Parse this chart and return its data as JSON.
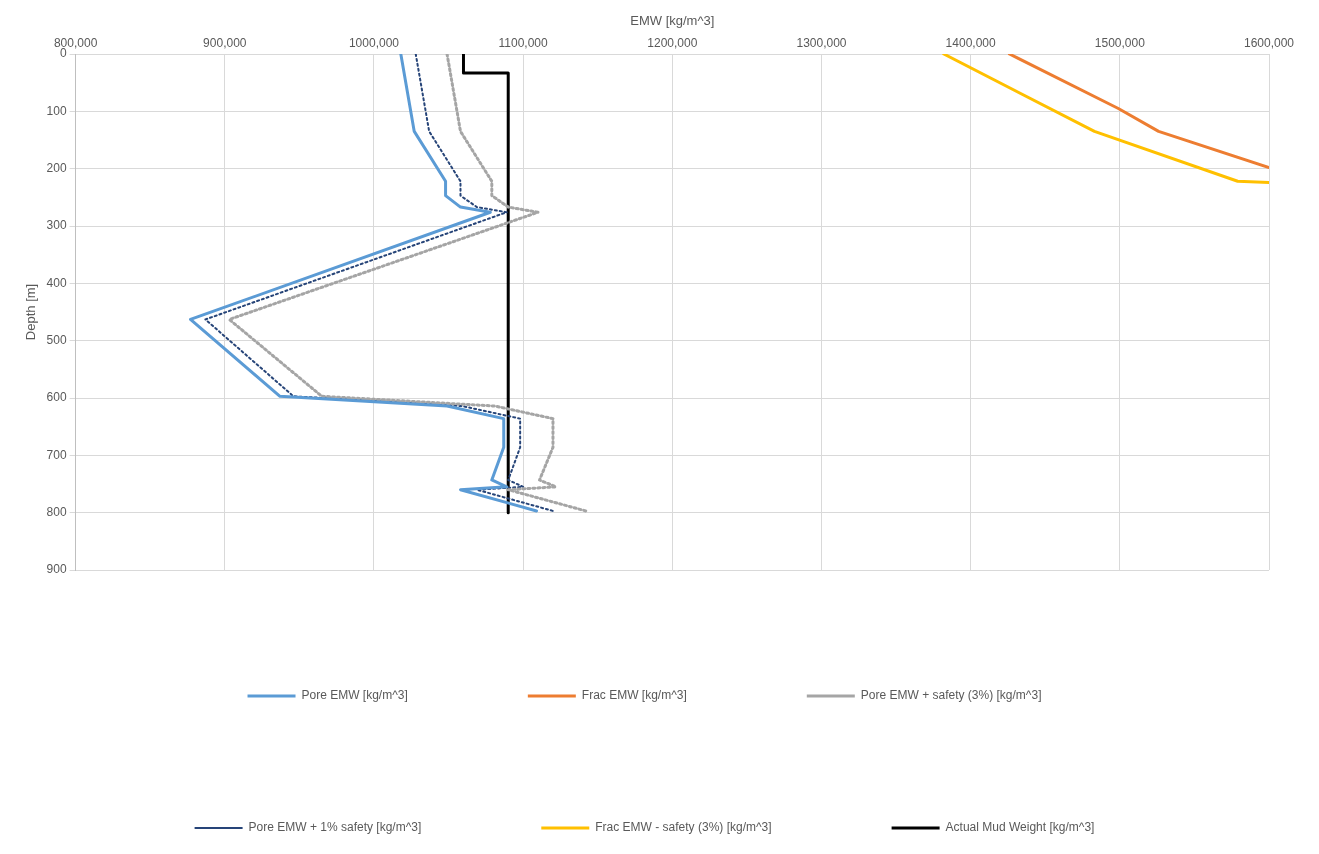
{
  "chart_data": {
    "type": "line",
    "xlabel": "EMW [kg/m^3]",
    "ylabel": "Depth [m]",
    "xlim": [
      800000,
      1600000
    ],
    "xticks": [
      {
        "value": 800000,
        "label": "800,000"
      },
      {
        "value": 900000,
        "label": "900,000"
      },
      {
        "value": 1000000,
        "label": "1000,000"
      },
      {
        "value": 1100000,
        "label": "1100,000"
      },
      {
        "value": 1200000,
        "label": "1200,000"
      },
      {
        "value": 1300000,
        "label": "1300,000"
      },
      {
        "value": 1400000,
        "label": "1400,000"
      },
      {
        "value": 1500000,
        "label": "1500,000"
      },
      {
        "value": 1600000,
        "label": "1600,000"
      }
    ],
    "ylim": [
      900,
      0
    ],
    "yticks": [
      0,
      100,
      200,
      300,
      400,
      500,
      600,
      700,
      800,
      900
    ],
    "grid": true,
    "legend": "bottom",
    "marker": "none",
    "series": [
      {
        "name": "Pore EMW [kg/m^3]",
        "color": "#5b9bd5",
        "line_style": "solid",
        "x": [
          1018000,
          1027000,
          1048000,
          1048000,
          1058000,
          1078000,
          877000,
          937000,
          1049000,
          1087000,
          1087000,
          1079000,
          1089000,
          1058000,
          1109000
        ],
        "values": [
          0,
          135,
          222,
          247,
          267,
          276,
          463,
          597,
          614,
          636,
          686,
          743,
          755,
          760,
          797
        ]
      },
      {
        "name": "Frac EMW [kg/m^3]",
        "color": "#ed7d31",
        "line_style": "solid",
        "x": [
          1426000,
          1499000,
          1526000,
          1600000
        ],
        "values": [
          0,
          95,
          135,
          198
        ]
      },
      {
        "name": "Pore EMW + safety (3%) [kg/m^3]",
        "color": "#a5a5a5",
        "line_style": "dotted",
        "x": [
          1049000,
          1058000,
          1079000,
          1079000,
          1090000,
          1110000,
          903000,
          965000,
          1081000,
          1120000,
          1120000,
          1111000,
          1122000,
          1090000,
          1142000
        ],
        "values": [
          0,
          135,
          222,
          247,
          267,
          276,
          463,
          597,
          614,
          636,
          686,
          743,
          755,
          760,
          797
        ]
      },
      {
        "name": "Pore EMW + 1% safety [kg/m^3]",
        "color": "#264478",
        "line_style": "dotted",
        "x": [
          1028000,
          1037000,
          1058000,
          1058000,
          1069000,
          1089000,
          887000,
          946000,
          1059000,
          1098000,
          1098000,
          1090000,
          1100000,
          1069000,
          1120000
        ],
        "values": [
          0,
          135,
          222,
          247,
          267,
          276,
          463,
          597,
          614,
          636,
          686,
          743,
          755,
          760,
          797
        ]
      },
      {
        "name": "Frac EMW - safety (3%) [kg/m^3]",
        "color": "#ffc000",
        "line_style": "solid",
        "x": [
          1382000,
          1483000,
          1579000,
          1600000
        ],
        "values": [
          0,
          135,
          222,
          224
        ]
      },
      {
        "name": "Actual Mud Weight [kg/m^3]",
        "color": "#000000",
        "line_style": "solid",
        "x": [
          1060000,
          1060000,
          1090000,
          1090000
        ],
        "values": [
          0,
          33,
          33,
          800
        ]
      }
    ]
  }
}
